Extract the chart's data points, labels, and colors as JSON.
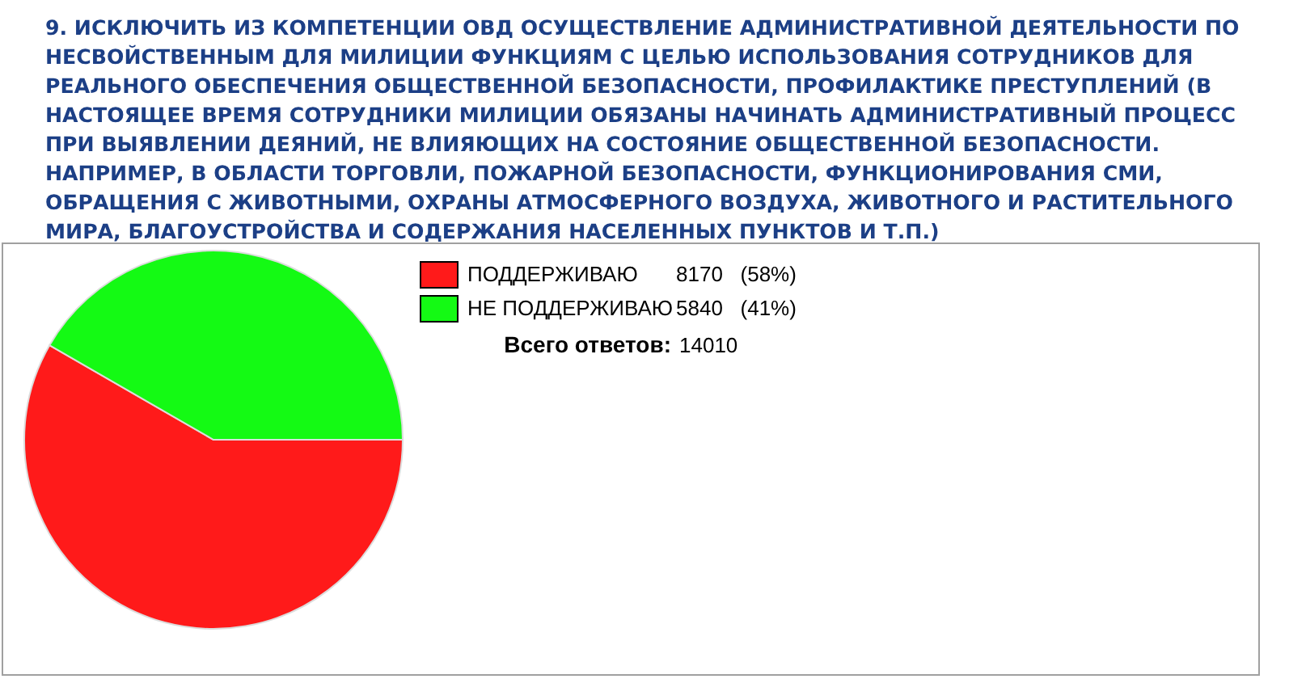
{
  "chart_data": {
    "type": "pie",
    "title": "9. ИСКЛЮЧИТЬ ИЗ КОМПЕТЕНЦИИ ОВД ОСУЩЕСТВЛЕНИЕ АДМИНИСТРАТИВНОЙ ДЕЯТЕЛЬНОСТИ ПО НЕСВОЙСТВЕННЫМ ДЛЯ МИЛИЦИИ ФУНКЦИЯМ С ЦЕЛЬЮ ИСПОЛЬЗОВАНИЯ СОТРУДНИКОВ ДЛЯ РЕАЛЬНОГО ОБЕСПЕЧЕНИЯ ОБЩЕСТВЕННОЙ БЕЗОПАСНОСТИ, ПРОФИЛАКТИКЕ ПРЕСТУПЛЕНИЙ (В НАСТОЯЩЕЕ ВРЕМЯ СОТРУДНИКИ МИЛИЦИИ ОБЯЗАНЫ НАЧИНАТЬ АДМИНИСТРАТИВНЫЙ ПРОЦЕСС ПРИ ВЫЯВЛЕНИИ ДЕЯНИЙ, НЕ ВЛИЯЮЩИХ НА СОСТОЯНИЕ ОБЩЕСТВЕННОЙ БЕЗОПАСНОСТИ. НАПРИМЕР, В ОБЛАСТИ ТОРГОВЛИ, ПОЖАРНОЙ БЕЗОПАСНОСТИ, ФУНКЦИОНИРОВАНИЯ СМИ, ОБРАЩЕНИЯ С ЖИВОТНЫМИ, ОХРАНЫ АТМОСФЕРНОГО ВОЗДУХА, ЖИВОТНОГО И РАСТИТЕЛЬНОГО МИРА, БЛАГОУСТРОЙСТВА И СОДЕРЖАНИЯ НАСЕЛЕННЫХ ПУНКТОВ И Т.П.)",
    "categories": [
      "ПОДДЕРЖИВАЮ",
      "НЕ ПОДДЕРЖИВАЮ"
    ],
    "values": [
      8170,
      5840
    ],
    "colors": [
      "#ff1a1a",
      "#14fa14"
    ],
    "value_labels": [
      "8170   (58%)",
      "5840   (41%)"
    ],
    "legend": "top right",
    "annotations": [
      "Всего ответов: 14010"
    ]
  }
}
